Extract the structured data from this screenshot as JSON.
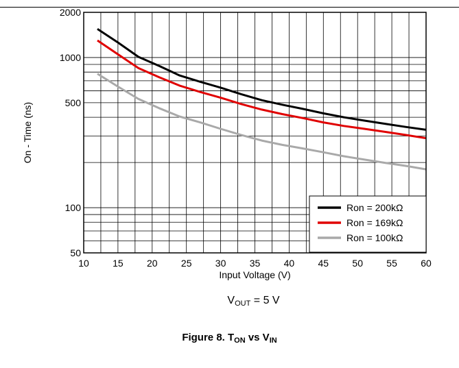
{
  "chart_data": {
    "type": "line",
    "xlabel": "Input Voltage (V)",
    "ylabel": "On - Time (ns)",
    "xlim": [
      10,
      60
    ],
    "ylim": [
      50,
      2000
    ],
    "y_scale": "log",
    "grid": true,
    "x_ticks": [
      "10",
      "15",
      "20",
      "25",
      "30",
      "35",
      "40",
      "45",
      "50",
      "55",
      "60"
    ],
    "y_ticks": [
      {
        "value": 50,
        "label": "50"
      },
      {
        "value": 100,
        "label": "100"
      },
      {
        "value": 500,
        "label": "500"
      },
      {
        "value": 1000,
        "label": "1000"
      },
      {
        "value": 2000,
        "label": "2000"
      }
    ],
    "legend_position": "bottom-right",
    "series": [
      {
        "name": "Ron = 200kΩ",
        "color": "#000000",
        "x": [
          12,
          15,
          18,
          21,
          24,
          27,
          30,
          33,
          36,
          39,
          42,
          45,
          48,
          51,
          54,
          57,
          60
        ],
        "y": [
          1550,
          1260,
          1010,
          880,
          760,
          690,
          630,
          570,
          520,
          485,
          455,
          425,
          400,
          380,
          362,
          345,
          330
        ]
      },
      {
        "name": "Ron = 169kΩ",
        "color": "#e00000",
        "x": [
          12,
          15,
          18,
          21,
          24,
          27,
          30,
          33,
          36,
          39,
          42,
          45,
          48,
          51,
          54,
          57,
          60
        ],
        "y": [
          1300,
          1050,
          850,
          740,
          650,
          590,
          540,
          490,
          450,
          420,
          395,
          370,
          350,
          335,
          320,
          305,
          290
        ]
      },
      {
        "name": "Ron = 100kΩ",
        "color": "#a9a9a9",
        "x": [
          12,
          15,
          18,
          21,
          24,
          27,
          30,
          33,
          36,
          39,
          42,
          45,
          48,
          51,
          54,
          57,
          60
        ],
        "y": [
          780,
          640,
          530,
          460,
          405,
          370,
          335,
          305,
          280,
          262,
          248,
          234,
          220,
          209,
          199,
          190,
          180
        ]
      }
    ]
  },
  "condition": {
    "prefix": "V",
    "sub": "OUT",
    "suffix": " = 5 V"
  },
  "caption": {
    "figure": "Figure 8. T",
    "sub1": "ON",
    "vs": " vs V",
    "sub2": "IN"
  }
}
